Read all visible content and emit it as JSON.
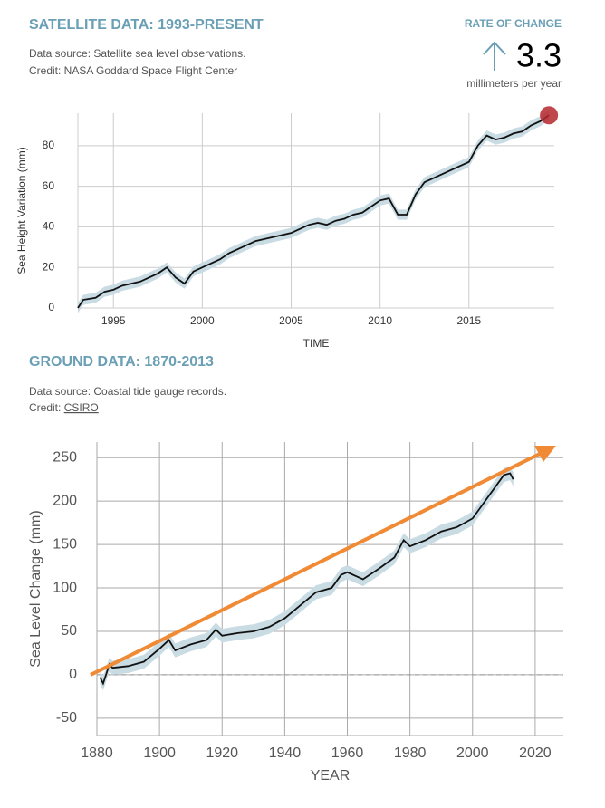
{
  "rate": {
    "label": "RATE OF CHANGE",
    "value": "3.3",
    "unit": "millimeters per year"
  },
  "chart_data": [
    {
      "type": "line",
      "title": "SATELLITE DATA: 1993-PRESENT",
      "source": "Data source: Satellite sea level observations.",
      "credit": "Credit: NASA Goddard Space Flight Center",
      "xlabel": "TIME",
      "ylabel": "Sea Height Variation (mm)",
      "xlim": [
        1993,
        2019.8
      ],
      "xticks": [
        1995,
        2000,
        2005,
        2010,
        2015
      ],
      "ylim": [
        0,
        96
      ],
      "yticks": [
        0,
        20,
        40,
        60,
        80
      ],
      "grid": true,
      "band": 2.5,
      "band_color": "#c9dbe3",
      "end_marker_color": "#b5272d",
      "x": [
        1993,
        1993.3,
        1994,
        1994.5,
        1995,
        1995.5,
        1996,
        1996.5,
        1997,
        1997.5,
        1998,
        1998.5,
        1999,
        1999.5,
        2000,
        2000.5,
        2001,
        2001.5,
        2002,
        2002.5,
        2003,
        2003.5,
        2004,
        2004.5,
        2005,
        2005.5,
        2006,
        2006.5,
        2007,
        2007.5,
        2008,
        2008.5,
        2009,
        2009.5,
        2010,
        2010.5,
        2011,
        2011.5,
        2012,
        2012.5,
        2013,
        2013.5,
        2014,
        2014.5,
        2015,
        2015.5,
        2016,
        2016.5,
        2017,
        2017.5,
        2018,
        2018.5,
        2019,
        2019.5
      ],
      "series": [
        {
          "name": "Satellite",
          "color": "#111111",
          "values": [
            0,
            4,
            5,
            8,
            9,
            11,
            12,
            13,
            15,
            17,
            20,
            15,
            12,
            18,
            20,
            22,
            24,
            27,
            29,
            31,
            33,
            34,
            35,
            36,
            37,
            39,
            41,
            42,
            41,
            43,
            44,
            46,
            47,
            50,
            53,
            54,
            46,
            46,
            56,
            62,
            64,
            66,
            68,
            70,
            72,
            80,
            85,
            83,
            84,
            86,
            87,
            90,
            92,
            95
          ]
        }
      ]
    },
    {
      "type": "line",
      "title": "GROUND DATA: 1870-2013",
      "source": "Data source: Coastal tide gauge records.",
      "credit_label": "Credit:",
      "credit_link": "CSIRO",
      "xlabel": "YEAR",
      "ylabel": "Sea Level Change (mm)",
      "xlim": [
        1880,
        2029
      ],
      "xticks": [
        1880,
        1900,
        1920,
        1940,
        1960,
        1980,
        2000,
        2020
      ],
      "ylim": [
        -70,
        268
      ],
      "yticks": [
        -50,
        0,
        50,
        100,
        150,
        200,
        250
      ],
      "grid": true,
      "band": 8,
      "band_color": "#c9dbe3",
      "zero_line": true,
      "x": [
        1881,
        1882,
        1884,
        1885,
        1890,
        1895,
        1900,
        1903,
        1905,
        1910,
        1915,
        1918,
        1920,
        1925,
        1930,
        1935,
        1940,
        1945,
        1950,
        1955,
        1958,
        1960,
        1965,
        1970,
        1975,
        1978,
        1980,
        1985,
        1990,
        1995,
        2000,
        2005,
        2010,
        2012,
        2013
      ],
      "series": [
        {
          "name": "Tide gauge",
          "color": "#111111",
          "values": [
            -3,
            -10,
            12,
            8,
            10,
            15,
            30,
            40,
            28,
            35,
            40,
            52,
            45,
            48,
            50,
            55,
            65,
            80,
            95,
            100,
            115,
            118,
            110,
            122,
            135,
            155,
            148,
            155,
            165,
            170,
            180,
            205,
            230,
            232,
            225
          ]
        }
      ]
    }
  ]
}
